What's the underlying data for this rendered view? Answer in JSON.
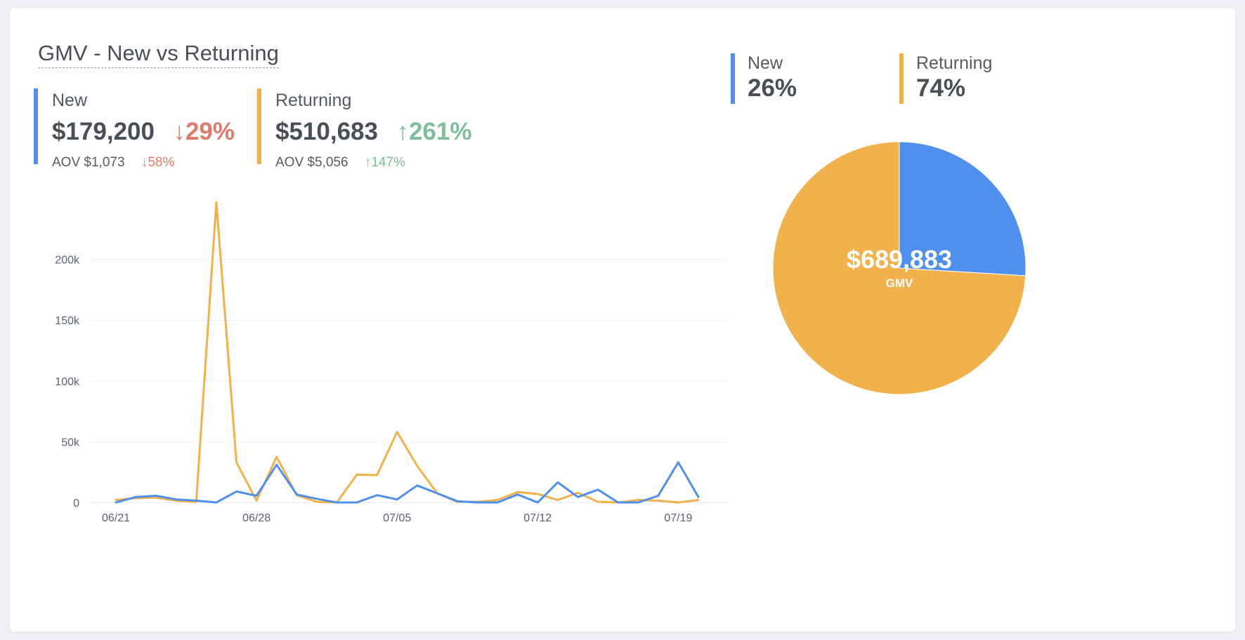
{
  "title": "GMV - New vs Returning",
  "colors": {
    "new": "#4f90ee",
    "returning": "#f2b24b",
    "down": "#de7c6b",
    "up": "#7dbf9b"
  },
  "kpis": {
    "new": {
      "label": "New",
      "amount": "$179,200",
      "change_arrow": "arrow-down-icon",
      "change": "29%",
      "aov_label": "AOV",
      "aov": "$1,073",
      "aov_change_arrow": "arrow-down-icon",
      "aov_change": "58%"
    },
    "returning": {
      "label": "Returning",
      "amount": "$510,683",
      "change_arrow": "arrow-up-icon",
      "change": "261%",
      "aov_label": "AOV",
      "aov": "$5,056",
      "aov_change_arrow": "arrow-up-icon",
      "aov_change": "147%"
    }
  },
  "share": {
    "new": {
      "label": "New",
      "pct": "26%"
    },
    "returning": {
      "label": "Returning",
      "pct": "74%"
    }
  },
  "pie": {
    "total": "$689,883",
    "total_label": "GMV"
  },
  "chart_data": [
    {
      "type": "line",
      "xlabel": "",
      "ylabel": "",
      "x": [
        "06/21",
        "06/22",
        "06/23",
        "06/24",
        "06/25",
        "06/26",
        "06/27",
        "06/28",
        "06/29",
        "06/30",
        "07/01",
        "07/02",
        "07/03",
        "07/04",
        "07/05",
        "07/06",
        "07/07",
        "07/08",
        "07/09",
        "07/10",
        "07/11",
        "07/12",
        "07/13",
        "07/14",
        "07/15",
        "07/16",
        "07/17",
        "07/18",
        "07/19",
        "07/20"
      ],
      "x_tick_labels": [
        "06/21",
        "06/28",
        "07/05",
        "07/12",
        "07/19"
      ],
      "y_ticks": [
        0,
        50000,
        100000,
        150000,
        200000
      ],
      "y_tick_labels": [
        "0",
        "50k",
        "100k",
        "150k",
        "200k"
      ],
      "ylim": [
        0,
        250000
      ],
      "grid": true,
      "series": [
        {
          "key": "returning",
          "values": [
            2000,
            3500,
            4000,
            1500,
            500,
            247000,
            33000,
            1500,
            37500,
            6000,
            500,
            0,
            23000,
            22500,
            58000,
            30000,
            7500,
            500,
            500,
            2000,
            8500,
            7000,
            2000,
            8000,
            500,
            0,
            2000,
            1500,
            0,
            2000
          ]
        },
        {
          "key": "new",
          "values": [
            0,
            4500,
            5500,
            2500,
            1500,
            0,
            9000,
            5500,
            31000,
            6500,
            3000,
            0,
            0,
            6000,
            2500,
            14000,
            7500,
            1000,
            0,
            0,
            6500,
            0,
            16500,
            4500,
            10500,
            0,
            0,
            5500,
            33000,
            4500
          ]
        }
      ]
    },
    {
      "type": "pie",
      "slices": [
        {
          "key": "new",
          "value": 179200,
          "pct": 26
        },
        {
          "key": "returning",
          "value": 510683,
          "pct": 74
        }
      ]
    }
  ]
}
